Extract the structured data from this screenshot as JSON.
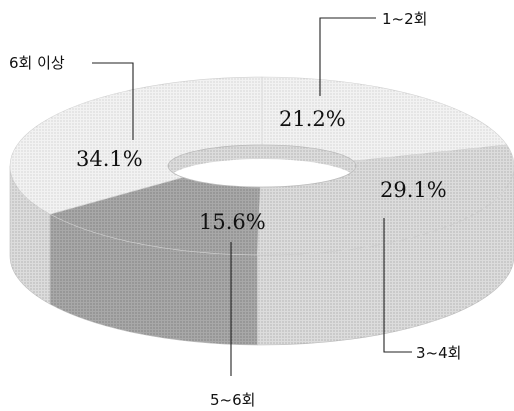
{
  "chart_data": {
    "type": "pie",
    "style": "3d-donut",
    "slices": [
      {
        "label": "1~2회",
        "value": 21.2,
        "value_label": "21.2%",
        "color": "#e6e6e6"
      },
      {
        "label": "3~4회",
        "value": 29.1,
        "value_label": "29.1%",
        "color": "#dedede"
      },
      {
        "label": "5~6회",
        "value": 15.6,
        "value_label": "15.6%",
        "color": "#a9a9a9"
      },
      {
        "label": "6회 이상",
        "value": 34.1,
        "value_label": "34.1%",
        "color": "#e9e9e9"
      }
    ],
    "title": "",
    "legend": "none"
  }
}
